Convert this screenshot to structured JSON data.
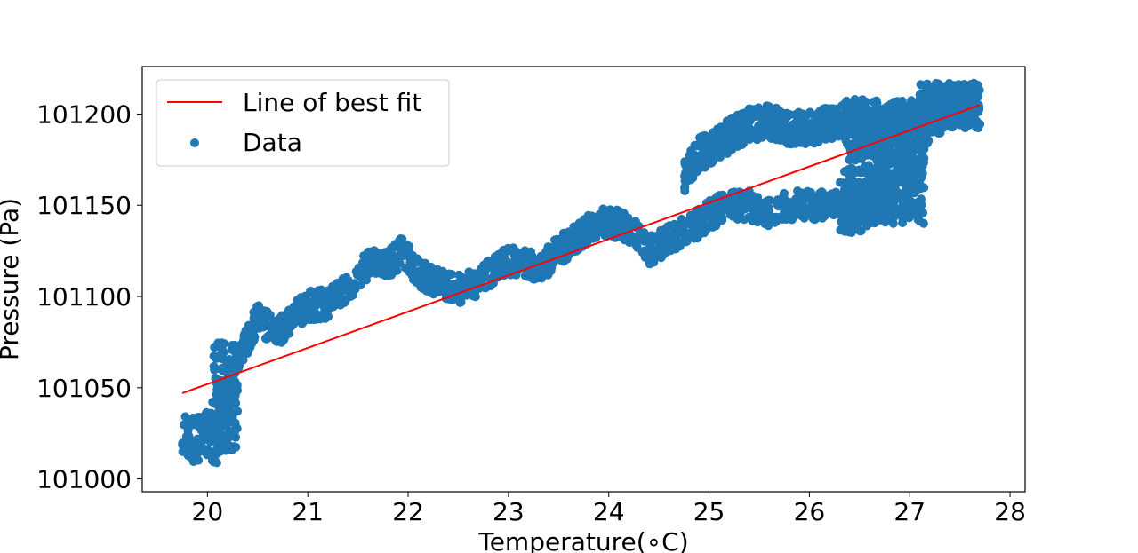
{
  "chart_data": {
    "type": "scatter",
    "xlabel": "Temperature(∘C)",
    "ylabel": "Pressure (Pa)",
    "xlim": [
      19.35,
      28.15
    ],
    "ylim": [
      100993,
      101226
    ],
    "xticks": [
      20,
      21,
      22,
      23,
      24,
      25,
      26,
      27,
      28
    ],
    "yticks": [
      101000,
      101050,
      101100,
      101150,
      101200
    ],
    "grid": false,
    "legend": {
      "placement": "top-left",
      "entries": [
        "Line of best fit",
        "Data"
      ]
    },
    "colors": {
      "fit_line": "#ff0000",
      "data_points": "#1f77b4"
    },
    "fit_line": {
      "name": "Line of best fit",
      "x": [
        19.75,
        27.7
      ],
      "y": [
        101047,
        101205
      ]
    },
    "data_series": {
      "name": "Data",
      "trend_x": [
        19.75,
        19.95,
        20.1,
        20.15,
        20.2,
        20.3,
        20.5,
        20.7,
        20.85,
        21.0,
        21.2,
        21.4,
        21.6,
        21.8,
        21.95,
        22.1,
        22.3,
        22.5,
        22.7,
        22.9,
        23.1,
        23.3,
        23.5,
        23.7,
        23.9,
        24.05,
        24.2,
        24.4,
        24.6,
        24.75,
        24.85,
        25.0,
        25.2,
        25.4,
        25.6,
        25.8,
        26.0,
        26.2,
        26.4,
        26.6,
        26.8,
        27.0,
        27.2,
        27.4,
        27.6,
        27.7
      ],
      "trend_y": [
        101020,
        101025,
        101022,
        101060,
        101025,
        101065,
        101088,
        101080,
        101090,
        101095,
        101096,
        101105,
        101118,
        101118,
        101125,
        101112,
        101108,
        101104,
        101108,
        101117,
        101120,
        101115,
        101125,
        101133,
        101140,
        101140,
        101138,
        101125,
        101132,
        101135,
        101138,
        101145,
        101150,
        101150,
        101145,
        101150,
        101150,
        101150,
        101148,
        101150,
        101160,
        101170,
        101195,
        101200,
        101205,
        101210
      ],
      "upper_branch_x": [
        24.75,
        24.9,
        25.05,
        25.2,
        25.4,
        25.6,
        25.8,
        26.0,
        26.2,
        26.4,
        26.6,
        26.8,
        27.0,
        27.2
      ],
      "upper_branch_y": [
        101165,
        101178,
        101182,
        101188,
        101194,
        101196,
        101192,
        101192,
        101195,
        101198,
        101192,
        101195,
        101198,
        101200
      ]
    }
  }
}
